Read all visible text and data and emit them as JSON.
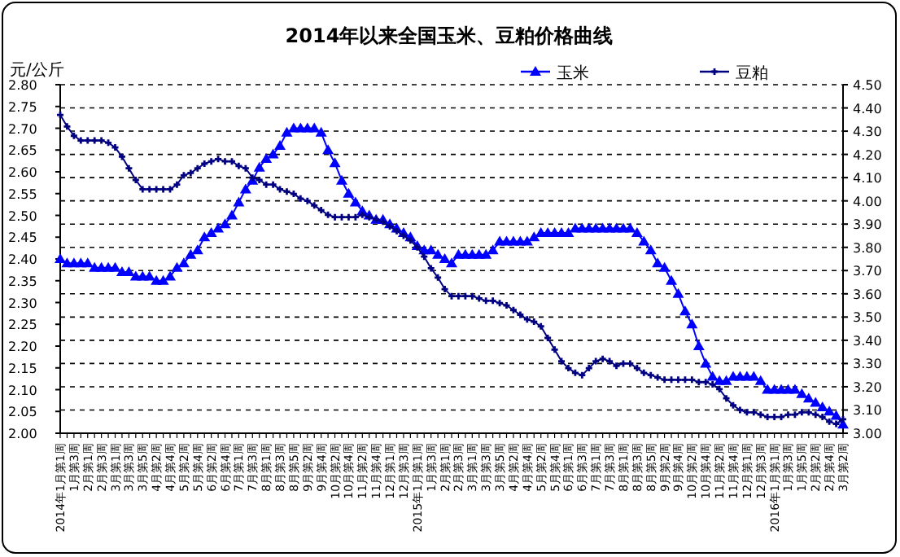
{
  "chart_data": {
    "type": "line",
    "title": "2014年以来全国玉米、豆粕价格曲线",
    "ylabel": "元/公斤",
    "categories": [
      "2014年1月第1周",
      null,
      "1月第3周",
      null,
      "2月第1周",
      null,
      "2月第3周",
      null,
      "3月第1周",
      null,
      "3月第3周",
      null,
      "3月第5周",
      null,
      "4月第2周",
      null,
      "4月第4周",
      null,
      "5月第2周",
      null,
      "5月第4周",
      null,
      "6月第2周",
      null,
      "6月第4周",
      null,
      "7月第1周",
      null,
      "7月第3周",
      null,
      "8月第1周",
      null,
      "8月第3周",
      null,
      "8月第5周",
      null,
      "9月第2周",
      null,
      "9月第4周",
      null,
      "10月第2周",
      null,
      "10月第4周",
      null,
      "11月第2周",
      null,
      "11月第4周",
      null,
      "12月第1周",
      null,
      "12月第3周",
      null,
      "2015年1月第1周",
      null,
      "1月第3周",
      null,
      "2月第1周",
      null,
      "2月第3周",
      null,
      "3月第1周",
      null,
      "3月第3周",
      null,
      "3月第5周",
      null,
      "4月第2周",
      null,
      "4月第4周",
      null,
      "5月第2周",
      null,
      "5月第4周",
      null,
      "6月第1周",
      null,
      "6月第3周",
      null,
      "7月第1周",
      null,
      "7月第3周",
      null,
      "8月第1周",
      null,
      "8月第3周",
      null,
      "8月第5周",
      null,
      "9月第2周",
      null,
      "9月第4周",
      null,
      "10月第2周",
      null,
      "10月第4周",
      null,
      "11月第2周",
      null,
      "11月第4周",
      null,
      "12月第1周",
      null,
      "12月第3周",
      null,
      "2016年1月第1周",
      null,
      "1月第3周",
      null,
      "1月第5周",
      null,
      "2月第2周",
      null,
      "2月第4周",
      null,
      "3月第2周"
    ],
    "series": [
      {
        "name": "玉米",
        "color": "#0000ff",
        "marker": "triangle",
        "values": [
          2.4,
          2.39,
          2.39,
          2.39,
          2.39,
          2.38,
          2.38,
          2.38,
          2.38,
          2.37,
          2.37,
          2.36,
          2.36,
          2.36,
          2.35,
          2.35,
          2.36,
          2.38,
          2.39,
          2.41,
          2.42,
          2.45,
          2.46,
          2.47,
          2.48,
          2.5,
          2.53,
          2.56,
          2.58,
          2.61,
          2.63,
          2.64,
          2.66,
          2.69,
          2.7,
          2.7,
          2.7,
          2.7,
          2.69,
          2.65,
          2.62,
          2.58,
          2.55,
          2.53,
          2.51,
          2.5,
          2.49,
          2.49,
          2.48,
          2.47,
          2.46,
          2.45,
          2.43,
          2.42,
          2.42,
          2.41,
          2.4,
          2.39,
          2.41,
          2.41,
          2.41,
          2.41,
          2.41,
          2.42,
          2.44,
          2.44,
          2.44,
          2.44,
          2.44,
          2.45,
          2.46,
          2.46,
          2.46,
          2.46,
          2.46,
          2.47,
          2.47,
          2.47,
          2.47,
          2.47,
          2.47,
          2.47,
          2.47,
          2.47,
          2.46,
          2.44,
          2.42,
          2.39,
          2.38,
          2.35,
          2.32,
          2.28,
          2.25,
          2.2,
          2.16,
          2.13,
          2.12,
          2.12,
          2.13,
          2.13,
          2.13,
          2.13,
          2.12,
          2.1,
          2.1,
          2.1,
          2.1,
          2.1,
          2.09,
          2.08,
          2.07,
          2.06,
          2.05,
          2.04,
          2.02
        ]
      },
      {
        "name": "豆粕",
        "color": "#000080",
        "marker": "cross",
        "axis": "y2",
        "values": [
          4.37,
          4.32,
          4.28,
          4.26,
          4.26,
          4.26,
          4.26,
          4.25,
          4.23,
          4.19,
          4.14,
          4.09,
          4.05,
          4.05,
          4.05,
          4.05,
          4.05,
          4.07,
          4.11,
          4.12,
          4.14,
          4.16,
          4.17,
          4.18,
          4.17,
          4.17,
          4.15,
          4.14,
          4.1,
          4.09,
          4.07,
          4.07,
          4.05,
          4.04,
          4.03,
          4.01,
          4.0,
          3.98,
          3.96,
          3.94,
          3.93,
          3.93,
          3.93,
          3.93,
          3.94,
          3.93,
          3.92,
          3.91,
          3.89,
          3.87,
          3.85,
          3.83,
          3.8,
          3.76,
          3.71,
          3.67,
          3.62,
          3.59,
          3.59,
          3.59,
          3.59,
          3.58,
          3.57,
          3.57,
          3.56,
          3.55,
          3.53,
          3.51,
          3.49,
          3.48,
          3.46,
          3.41,
          3.36,
          3.31,
          3.28,
          3.26,
          3.25,
          3.28,
          3.31,
          3.32,
          3.31,
          3.29,
          3.3,
          3.3,
          3.28,
          3.26,
          3.25,
          3.24,
          3.23,
          3.23,
          3.23,
          3.23,
          3.23,
          3.22,
          3.22,
          3.21,
          3.19,
          3.15,
          3.12,
          3.1,
          3.09,
          3.09,
          3.08,
          3.07,
          3.07,
          3.07,
          3.08,
          3.08,
          3.09,
          3.09,
          3.08,
          3.07,
          3.05,
          3.04,
          3.06
        ]
      }
    ],
    "ylim": [
      2.0,
      2.8
    ],
    "yticks": [
      {
        "value": 2.0,
        "label": "2.00"
      },
      {
        "value": 2.05,
        "label": "2.05"
      },
      {
        "value": 2.1,
        "label": "2.10"
      },
      {
        "value": 2.15,
        "label": "2.15"
      },
      {
        "value": 2.2,
        "label": "2.20"
      },
      {
        "value": 2.25,
        "label": "2.25"
      },
      {
        "value": 2.3,
        "label": "2.30"
      },
      {
        "value": 2.35,
        "label": "2.35"
      },
      {
        "value": 2.4,
        "label": "2.40"
      },
      {
        "value": 2.45,
        "label": "2.45"
      },
      {
        "value": 2.5,
        "label": "2.50"
      },
      {
        "value": 2.55,
        "label": "2.55"
      },
      {
        "value": 2.6,
        "label": "2.60"
      },
      {
        "value": 2.65,
        "label": "2.65"
      },
      {
        "value": 2.7,
        "label": "2.70"
      },
      {
        "value": 2.75,
        "label": "2.75"
      },
      {
        "value": 2.8,
        "label": "2.80"
      }
    ],
    "y2lim": [
      3.0,
      4.5
    ],
    "y2ticks": [
      {
        "value": 3.0,
        "label": "3.00"
      },
      {
        "value": 3.1,
        "label": "3.10"
      },
      {
        "value": 3.2,
        "label": "3.20"
      },
      {
        "value": 3.3,
        "label": "3.30"
      },
      {
        "value": 3.4,
        "label": "3.40"
      },
      {
        "value": 3.5,
        "label": "3.50"
      },
      {
        "value": 3.6,
        "label": "3.60"
      },
      {
        "value": 3.7,
        "label": "3.70"
      },
      {
        "value": 3.8,
        "label": "3.80"
      },
      {
        "value": 3.9,
        "label": "3.90"
      },
      {
        "value": 4.0,
        "label": "4.00"
      },
      {
        "value": 4.1,
        "label": "4.10"
      },
      {
        "value": 4.2,
        "label": "4.20"
      },
      {
        "value": 4.3,
        "label": "4.30"
      },
      {
        "value": 4.4,
        "label": "4.40"
      },
      {
        "value": 4.5,
        "label": "4.50"
      }
    ],
    "grid": "y2",
    "legend": "top right"
  }
}
